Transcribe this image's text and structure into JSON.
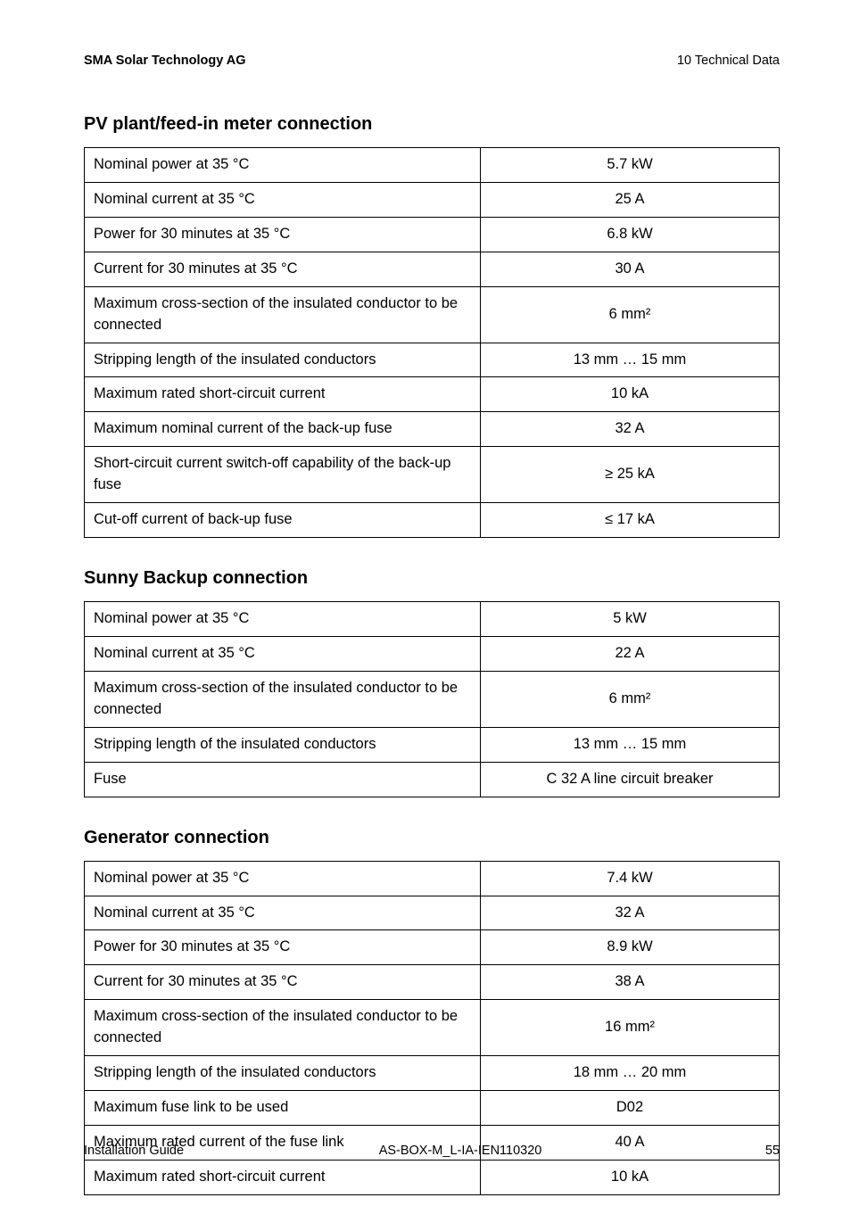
{
  "header": {
    "left": "SMA Solar Technology AG",
    "right": "10 Technical Data"
  },
  "sections": [
    {
      "title": "PV plant/feed-in meter connection",
      "rows": [
        {
          "label": "Nominal power at 35 °C",
          "value": "5.7 kW"
        },
        {
          "label": "Nominal current at 35 °C",
          "value": "25 A"
        },
        {
          "label": "Power for 30 minutes at 35 °C",
          "value": "6.8 kW"
        },
        {
          "label": "Current for 30 minutes at 35 °C",
          "value": "30 A"
        },
        {
          "label": "Maximum cross-section of the insulated conductor to be connected",
          "value": "6 mm²"
        },
        {
          "label": "Stripping length of the insulated conductors",
          "value": "13 mm … 15 mm"
        },
        {
          "label": "Maximum rated short-circuit current",
          "value": "10 kA"
        },
        {
          "label": "Maximum nominal current of the back-up fuse",
          "value": "32 A"
        },
        {
          "label": "Short-circuit current switch-off capability of the back-up fuse",
          "value": "≥  25 kA"
        },
        {
          "label": "Cut-off current of back-up fuse",
          "value": "≤  17 kA"
        }
      ]
    },
    {
      "title": "Sunny Backup connection",
      "rows": [
        {
          "label": "Nominal power at 35 °C",
          "value": "5 kW"
        },
        {
          "label": "Nominal current at 35 °C",
          "value": "22 A"
        },
        {
          "label": "Maximum cross-section of the insulated conductor to be connected",
          "value": "6 mm²"
        },
        {
          "label": "Stripping length of the insulated conductors",
          "value": "13 mm … 15 mm"
        },
        {
          "label": "Fuse",
          "value": "C 32 A line circuit breaker"
        }
      ]
    },
    {
      "title": "Generator connection",
      "rows": [
        {
          "label": "Nominal power at 35 °C",
          "value": "7.4 kW"
        },
        {
          "label": "Nominal current at 35 °C",
          "value": "32 A"
        },
        {
          "label": "Power for 30 minutes at 35 °C",
          "value": "8.9 kW"
        },
        {
          "label": "Current for 30 minutes at 35 °C",
          "value": "38 A"
        },
        {
          "label": "Maximum cross-section of the insulated conductor to be connected",
          "value": "16 mm²"
        },
        {
          "label": "Stripping length of the insulated conductors",
          "value": "18 mm … 20 mm"
        },
        {
          "label": "Maximum fuse link to be used",
          "value": "D02"
        },
        {
          "label": "Maximum rated current of the fuse link",
          "value": "40 A"
        },
        {
          "label": "Maximum rated short-circuit current",
          "value": "10 kA"
        }
      ]
    }
  ],
  "footer": {
    "left": "Installation Guide",
    "center": "AS-BOX-M_L-IA-IEN110320",
    "page": "55"
  }
}
